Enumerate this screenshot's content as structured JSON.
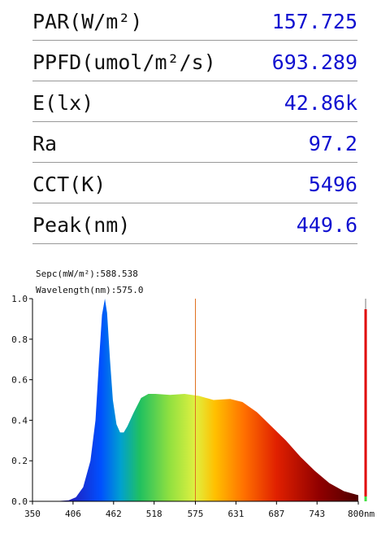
{
  "table": {
    "rows": [
      [
        "PAR(W/m²)",
        "157.725"
      ],
      [
        "PPFD(umol/m²/s)",
        "693.289"
      ],
      [
        "E(lx)",
        "42.86k"
      ],
      [
        "Ra",
        "97.2"
      ],
      [
        "CCT(K)",
        "5496"
      ],
      [
        "Peak(nm)",
        "449.6"
      ]
    ]
  },
  "chart_data": {
    "type": "area",
    "annotations": [
      {
        "label": "Sepc(mW/m²):588.538",
        "value": 588.538
      },
      {
        "label": "Wavelength(nm):575.0",
        "value": 575
      }
    ],
    "x": [
      350,
      380,
      400,
      410,
      420,
      430,
      437,
      442,
      446,
      450,
      453,
      457,
      461,
      466,
      471,
      476,
      481,
      490,
      500,
      510,
      520,
      540,
      560,
      580,
      600,
      623,
      640,
      660,
      680,
      700,
      720,
      740,
      760,
      780,
      800
    ],
    "values": [
      0,
      0,
      0.005,
      0.02,
      0.07,
      0.2,
      0.4,
      0.7,
      0.92,
      1.0,
      0.93,
      0.7,
      0.5,
      0.38,
      0.34,
      0.34,
      0.37,
      0.44,
      0.51,
      0.53,
      0.53,
      0.525,
      0.53,
      0.52,
      0.5,
      0.505,
      0.49,
      0.44,
      0.37,
      0.3,
      0.22,
      0.15,
      0.09,
      0.05,
      0.03
    ],
    "xlim": [
      350,
      800
    ],
    "xticks": [
      350,
      406,
      462,
      518,
      575,
      631,
      687,
      743,
      {
        "value": 800,
        "label": "800nm"
      }
    ],
    "ylim": [
      0,
      1.0
    ],
    "yticks": [
      {
        "value": 0,
        "label": "0.0"
      },
      {
        "value": 0.2,
        "label": "0.2"
      },
      {
        "value": 0.4,
        "label": "0.4"
      },
      {
        "value": 0.6,
        "label": "0.6"
      },
      {
        "value": 0.8,
        "label": "0.8"
      },
      {
        "value": 1.0,
        "label": "1.0"
      }
    ]
  }
}
